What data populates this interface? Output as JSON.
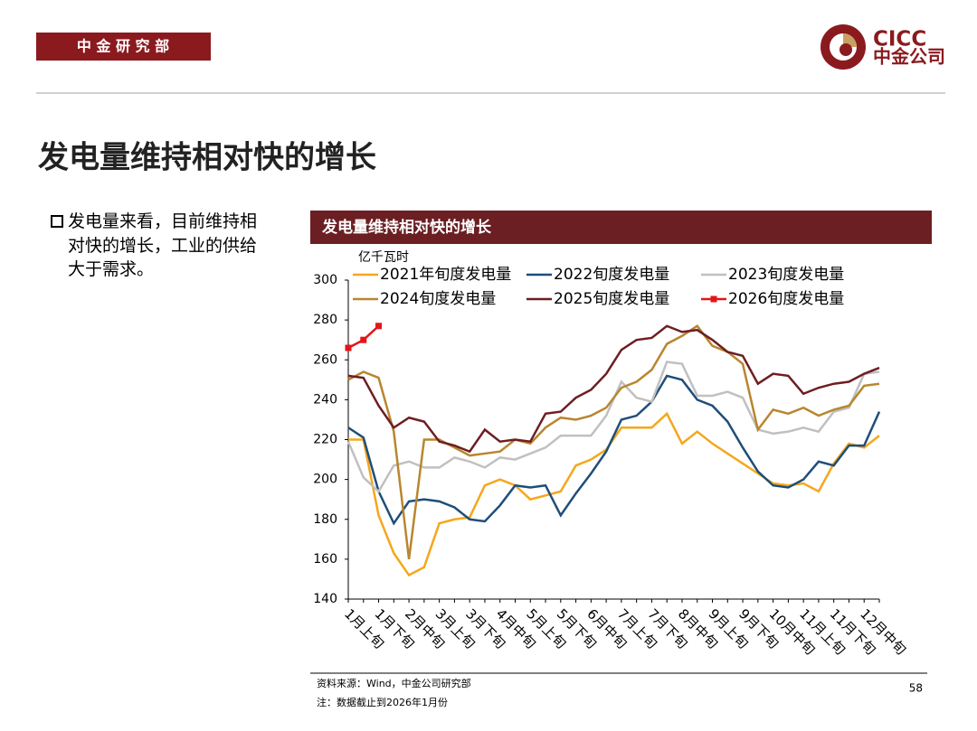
{
  "header": {
    "department": "中 金 研 究 部",
    "logo_en": "CICC",
    "logo_cn": "中金公司"
  },
  "title": "发电量维持相对快的增长",
  "bullet": "发电量来看，目前维持相对快的增长，工业的供给大于需求。",
  "chart_data": {
    "type": "line",
    "title": "发电量维持相对快的增长",
    "y_label": "亿千瓦时",
    "categories": [
      "1月上旬",
      null,
      "1月下旬",
      null,
      "2月中旬",
      null,
      "3月上旬",
      null,
      "3月下旬",
      null,
      "4月中旬",
      null,
      "5月上旬",
      null,
      "5月下旬",
      null,
      "6月中旬",
      null,
      "7月上旬",
      null,
      "7月下旬",
      null,
      "8月中旬",
      null,
      "9月上旬",
      null,
      "9月下旬",
      null,
      "10月中旬",
      null,
      "11月上旬",
      null,
      "11月下旬",
      null,
      "12月中旬",
      null
    ],
    "ylim": [
      140,
      300
    ],
    "yticks": [
      140,
      160,
      180,
      200,
      220,
      240,
      260,
      280,
      300
    ],
    "grid": false,
    "series": [
      {
        "name": "2021年旬度发电量",
        "color": "#f5a71c",
        "values": [
          220,
          220,
          182,
          163,
          152,
          156,
          178,
          180,
          181,
          197,
          200,
          197,
          190,
          192,
          194,
          207,
          210,
          215,
          226,
          226,
          226,
          233,
          218,
          224,
          218,
          213,
          208,
          203,
          198,
          197,
          198,
          194,
          208,
          218,
          216,
          222
        ]
      },
      {
        "name": "2022旬度发电量",
        "color": "#1f4e79",
        "values": [
          226,
          221,
          194,
          178,
          189,
          190,
          189,
          186,
          180,
          179,
          187,
          197,
          196,
          197,
          182,
          193,
          203,
          214,
          230,
          232,
          239,
          252,
          250,
          240,
          237,
          229,
          216,
          204,
          197,
          196,
          200,
          209,
          207,
          217,
          217,
          234
        ]
      },
      {
        "name": "2023旬度发电量",
        "color": "#c0c0c0",
        "values": [
          219,
          201,
          194,
          207,
          209,
          206,
          206,
          211,
          209,
          206,
          211,
          210,
          213,
          216,
          222,
          222,
          222,
          232,
          249,
          241,
          239,
          259,
          258,
          242,
          242,
          244,
          241,
          225,
          223,
          224,
          226,
          224,
          234,
          236,
          253,
          254
        ]
      },
      {
        "name": "2024旬度发电量",
        "color": "#b8862f",
        "values": [
          250,
          254,
          251,
          224,
          160,
          220,
          220,
          216,
          212,
          213,
          214,
          220,
          218,
          226,
          231,
          230,
          232,
          236,
          246,
          249,
          255,
          268,
          272,
          277,
          267,
          264,
          258,
          225,
          235,
          233,
          236,
          232,
          235,
          237,
          247,
          248
        ]
      },
      {
        "name": "2025旬度发电量",
        "color": "#6e1e22",
        "values": [
          252,
          251,
          237,
          226,
          231,
          229,
          219,
          217,
          214,
          225,
          219,
          220,
          219,
          233,
          234,
          241,
          245,
          253,
          265,
          270,
          271,
          277,
          274,
          275,
          270,
          264,
          262,
          248,
          253,
          252,
          243,
          246,
          248,
          249,
          253,
          256
        ]
      },
      {
        "name": "2026旬度发电量",
        "color": "#e3151a",
        "markers": true,
        "values": [
          266,
          270,
          277,
          null,
          null,
          null,
          null,
          null,
          null,
          null,
          null,
          null,
          null,
          null,
          null,
          null,
          null,
          null,
          null,
          null,
          null,
          null,
          null,
          null,
          null,
          null,
          null,
          null,
          null,
          null,
          null,
          null,
          null,
          null,
          null,
          null
        ]
      }
    ]
  },
  "source": "资料来源：Wind，中金公司研究部",
  "note": "注：数据截止到2026年1月份",
  "page": "58"
}
